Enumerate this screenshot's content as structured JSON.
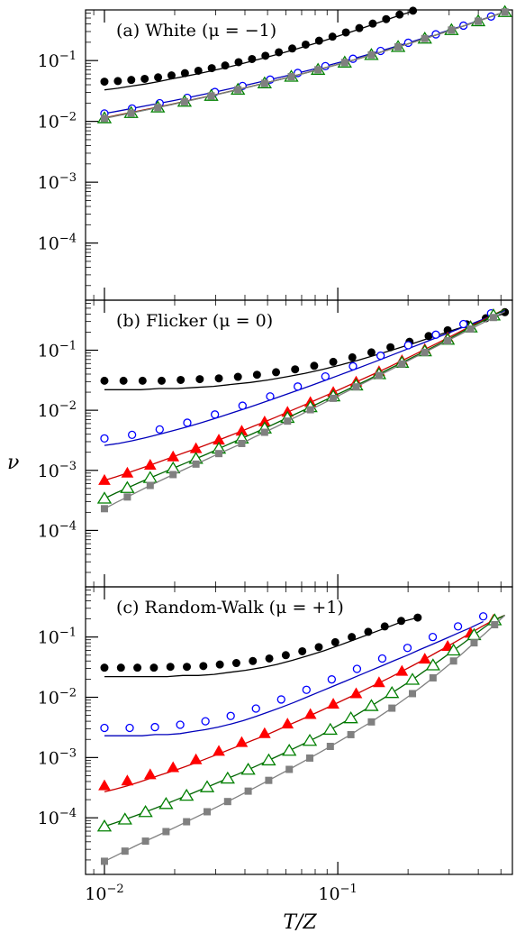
{
  "chart_data": {
    "type": "scatter",
    "xlabel": "T/Z",
    "ylabel": "ν",
    "x_scale": "log",
    "y_scale": "log",
    "xlim": [
      0.0083,
      0.56
    ],
    "x_ticks": [
      {
        "value": 0.01,
        "label": "10",
        "exp": "−2"
      },
      {
        "value": 0.1,
        "label": "10",
        "exp": "−1"
      }
    ],
    "y_ticks": [
      {
        "value": 0.1,
        "label": "10",
        "exp": "−1"
      },
      {
        "value": 0.01,
        "label": "10",
        "exp": "−2"
      },
      {
        "value": 0.001,
        "label": "10",
        "exp": "−3"
      },
      {
        "value": 0.0001,
        "label": "10",
        "exp": "−4"
      }
    ],
    "ylim": [
      1.15e-05,
      0.68
    ],
    "series_style": [
      {
        "marker": "filled-circle",
        "fill": "#000000",
        "stroke": "#000000",
        "line": "#000000"
      },
      {
        "marker": "open-circle",
        "fill": "#ffffff",
        "stroke": "#0000ff",
        "line": "#0000bb"
      },
      {
        "marker": "filled-triangle",
        "fill": "#ff0000",
        "stroke": "#ff0000",
        "line": "#cc0000"
      },
      {
        "marker": "open-triangle",
        "fill": "#ffffff",
        "stroke": "#008000",
        "line": "#006400"
      },
      {
        "marker": "filled-square",
        "fill": "#808080",
        "stroke": "#808080",
        "line": "#808080"
      }
    ],
    "panels": [
      {
        "label": "(a) White (μ = −1)",
        "series": [
          {
            "ratio": [
              0.045,
              0.046,
              0.048,
              0.05,
              0.053,
              0.057,
              0.062,
              0.068,
              0.075,
              0.083,
              0.094,
              0.106,
              0.12,
              0.137,
              0.158,
              0.183,
              0.212,
              0.247,
              0.29,
              0.342,
              0.405,
              0.48,
              0.57,
              0.66
            ],
            "x_end": 0.21,
            "line_ratio": [
              0.033,
              0.035,
              0.038,
              0.041,
              0.045,
              0.05,
              0.055,
              0.061,
              0.068,
              0.076,
              0.086,
              0.098,
              0.112,
              0.128,
              0.148,
              0.172,
              0.2,
              0.235,
              0.277,
              0.328,
              0.39,
              0.465,
              0.555,
              0.645
            ]
          },
          {
            "ratio": [
              0.0135,
              0.0148,
              0.0163,
              0.018,
              0.0199,
              0.022,
              0.0244,
              0.0272,
              0.0304,
              0.034,
              0.0382,
              0.043,
              0.0486,
              0.055,
              0.0625,
              0.071,
              0.081,
              0.093,
              0.107,
              0.124,
              0.144,
              0.168,
              0.196,
              0.23,
              0.27,
              0.318,
              0.375,
              0.445,
              0.53,
              0.63
            ]
          },
          {
            "ratio": [
              0.0115,
              0.0127,
              0.014,
              0.0155,
              0.0172,
              0.0191,
              0.0213,
              0.0238,
              0.0266,
              0.0298,
              0.0335,
              0.0377,
              0.0426,
              0.0482,
              0.0547,
              0.0622,
              0.071,
              0.081,
              0.093,
              0.107,
              0.124,
              0.144,
              0.168,
              0.196,
              0.23,
              0.27,
              0.318,
              0.375,
              0.445,
              0.53,
              0.63
            ]
          },
          {
            "ratio": [
              0.0113,
              0.0125,
              0.0138,
              0.0153,
              0.017,
              0.0189,
              0.0211,
              0.0236,
              0.0264,
              0.0296,
              0.0333,
              0.0375,
              0.0424,
              0.048,
              0.0545,
              0.062,
              0.0708,
              0.081,
              0.093,
              0.107,
              0.124,
              0.144,
              0.168,
              0.196,
              0.23,
              0.27,
              0.318,
              0.375,
              0.445,
              0.53,
              0.63
            ]
          },
          {
            "ratio": [
              0.0112,
              0.0124,
              0.0137,
              0.0152,
              0.0169,
              0.0188,
              0.021,
              0.0235,
              0.0263,
              0.0295,
              0.0332,
              0.0374,
              0.0423,
              0.0479,
              0.0544,
              0.0619,
              0.0707,
              0.081,
              0.093,
              0.107,
              0.124,
              0.144,
              0.168,
              0.196,
              0.23,
              0.27,
              0.318,
              0.375,
              0.445,
              0.53,
              0.63
            ]
          }
        ]
      },
      {
        "label": "(b) Flicker (μ = 0)",
        "series": [
          {
            "ratio": [
              0.031,
              0.031,
              0.031,
              0.031,
              0.032,
              0.033,
              0.034,
              0.036,
              0.039,
              0.043,
              0.048,
              0.055,
              0.064,
              0.076,
              0.092,
              0.112,
              0.138,
              0.172,
              0.215,
              0.27,
              0.34,
              0.43
            ],
            "line_ratio": [
              0.022,
              0.022,
              0.022,
              0.023,
              0.023,
              0.024,
              0.025,
              0.027,
              0.029,
              0.032,
              0.036,
              0.041,
              0.048,
              0.057,
              0.069,
              0.085,
              0.105,
              0.131,
              0.165,
              0.208,
              0.262,
              0.33,
              0.41
            ]
          },
          {
            "ratio": [
              0.0034,
              0.0036,
              0.0039,
              0.0043,
              0.0048,
              0.0054,
              0.0062,
              0.0072,
              0.0085,
              0.01,
              0.0119,
              0.0142,
              0.017,
              0.0205,
              0.0248,
              0.03,
              0.0365,
              0.0445,
              0.054,
              0.066,
              0.081,
              0.099,
              0.121,
              0.148,
              0.181,
              0.222,
              0.272,
              0.333,
              0.41,
              0.5
            ],
            "line_ratio": [
              0.0026,
              0.0028,
              0.0031,
              0.0035,
              0.004,
              0.0046,
              0.0053,
              0.0062,
              0.0073,
              0.0087,
              0.0103,
              0.0123,
              0.0148,
              0.0178,
              0.0215,
              0.026,
              0.0315,
              0.0384,
              0.0468,
              0.057,
              0.07,
              0.086,
              0.106,
              0.13,
              0.16,
              0.197,
              0.243,
              0.3,
              0.37,
              0.46
            ]
          },
          {
            "ratio": [
              0.00068,
              0.00078,
              0.0009,
              0.00105,
              0.00122,
              0.00143,
              0.00168,
              0.00197,
              0.0023,
              0.0027,
              0.0032,
              0.0038,
              0.0045,
              0.0054,
              0.0064,
              0.0077,
              0.0093,
              0.0112,
              0.0135,
              0.0164,
              0.0199,
              0.0242,
              0.0296,
              0.036,
              0.044,
              0.054,
              0.067,
              0.083,
              0.103,
              0.128,
              0.16,
              0.2,
              0.25,
              0.31,
              0.39,
              0.48
            ]
          },
          {
            "ratio": [
              0.00034,
              0.00042,
              0.00051,
              0.00062,
              0.00075,
              0.0009,
              0.00108,
              0.0013,
              0.00156,
              0.00188,
              0.0023,
              0.0028,
              0.0034,
              0.0041,
              0.005,
              0.0061,
              0.0075,
              0.0092,
              0.0113,
              0.0139,
              0.0171,
              0.021,
              0.026,
              0.032,
              0.04,
              0.05,
              0.062,
              0.077,
              0.096,
              0.12,
              0.15,
              0.19,
              0.24,
              0.3,
              0.38,
              0.48
            ]
          },
          {
            "ratio": [
              0.00023,
              0.00029,
              0.00036,
              0.00045,
              0.00056,
              0.00069,
              0.00085,
              0.00104,
              0.00127,
              0.00155,
              0.0019,
              0.0023,
              0.0028,
              0.0035,
              0.0043,
              0.0053,
              0.0066,
              0.0082,
              0.0102,
              0.0127,
              0.0158,
              0.0197,
              0.0245,
              0.0305,
              0.038,
              0.047,
              0.059,
              0.074,
              0.092,
              0.115,
              0.144,
              0.18,
              0.225,
              0.28,
              0.35,
              0.44
            ]
          }
        ]
      },
      {
        "label": "(c) Random-Walk (μ = +1)",
        "series": [
          {
            "ratio": [
              0.031,
              0.031,
              0.031,
              0.031,
              0.032,
              0.032,
              0.033,
              0.035,
              0.037,
              0.04,
              0.044,
              0.05,
              0.058,
              0.068,
              0.082,
              0.1,
              0.122,
              0.15,
              0.185,
              0.21
            ],
            "x_end": 0.22,
            "line_ratio": [
              0.022,
              0.022,
              0.022,
              0.022,
              0.022,
              0.023,
              0.023,
              0.024,
              0.026,
              0.028,
              0.031,
              0.035,
              0.041,
              0.049,
              0.059,
              0.073,
              0.091,
              0.114,
              0.143,
              0.18,
              0.21
            ]
          },
          {
            "ratio": [
              0.0031,
              0.0031,
              0.0031,
              0.0032,
              0.0032,
              0.0033,
              0.0035,
              0.0037,
              0.004,
              0.0044,
              0.0049,
              0.0056,
              0.0065,
              0.0077,
              0.0092,
              0.011,
              0.0133,
              0.0162,
              0.0198,
              0.0242,
              0.0296,
              0.036,
              0.044,
              0.054,
              0.066,
              0.081,
              0.1,
              0.122,
              0.15,
              0.185,
              0.22
            ],
            "x_end": 0.42,
            "line_ratio": [
              0.0023,
              0.0023,
              0.0023,
              0.0023,
              0.0024,
              0.0024,
              0.0025,
              0.0027,
              0.0029,
              0.0032,
              0.0036,
              0.0041,
              0.0048,
              0.0057,
              0.0068,
              0.0082,
              0.01,
              0.0122,
              0.0149,
              0.0182,
              0.0223,
              0.0273,
              0.0334,
              0.041,
              0.05,
              0.062,
              0.076,
              0.094,
              0.116,
              0.143,
              0.18
            ]
          },
          {
            "ratio": [
              0.00034,
              0.00037,
              0.00041,
              0.00046,
              0.00052,
              0.00059,
              0.00068,
              0.00079,
              0.00092,
              0.00108,
              0.00127,
              0.0015,
              0.00178,
              0.0021,
              0.0025,
              0.003,
              0.0036,
              0.0043,
              0.0052,
              0.0063,
              0.0077,
              0.0094,
              0.0115,
              0.0142,
              0.0175,
              0.0217,
              0.027,
              0.034,
              0.043,
              0.055,
              0.07,
              0.09,
              0.116,
              0.15,
              0.19,
              0.23
            ],
            "line_ratio": [
              0.00027,
              0.0003,
              0.00034,
              0.00039,
              0.00045,
              0.00052,
              0.0006,
              0.0007,
              0.00082,
              0.00097,
              0.00115,
              0.00137,
              0.00163,
              0.00195,
              0.0023,
              0.0028,
              0.0034,
              0.0041,
              0.005,
              0.0061,
              0.0075,
              0.0092,
              0.0113,
              0.014,
              0.0173,
              0.0215,
              0.027,
              0.034,
              0.043,
              0.055,
              0.07,
              0.09,
              0.116,
              0.15,
              0.19,
              0.23
            ]
          },
          {
            "ratio": [
              7.2e-05,
              8.2e-05,
              9.4e-05,
              0.000108,
              0.000125,
              0.000145,
              0.00017,
              0.000199,
              0.000233,
              0.000274,
              0.000323,
              0.00038,
              0.00045,
              0.00053,
              0.00063,
              0.00075,
              0.0009,
              0.00108,
              0.0013,
              0.00157,
              0.0019,
              0.0023,
              0.0029,
              0.0036,
              0.0045,
              0.0057,
              0.0072,
              0.0092,
              0.0118,
              0.0152,
              0.0196,
              0.026,
              0.034,
              0.045,
              0.06,
              0.08,
              0.108,
              0.145,
              0.19,
              0.23
            ]
          },
          {
            "ratio": [
              1.9e-05,
              2.3e-05,
              2.8e-05,
              3.4e-05,
              4.1e-05,
              4.9e-05,
              5.9e-05,
              7.1e-05,
              8.6e-05,
              0.000104,
              0.000126,
              0.000153,
              0.000186,
              0.000227,
              0.000277,
              0.00034,
              0.000418,
              0.000515,
              0.000636,
              0.00079,
              0.00098,
              0.00122,
              0.00153,
              0.00192,
              0.0024,
              0.0031,
              0.0039,
              0.0051,
              0.0066,
              0.0087,
              0.0115,
              0.0155,
              0.021,
              0.029,
              0.04,
              0.056,
              0.08,
              0.112,
              0.16,
              0.23
            ]
          }
        ]
      }
    ]
  }
}
